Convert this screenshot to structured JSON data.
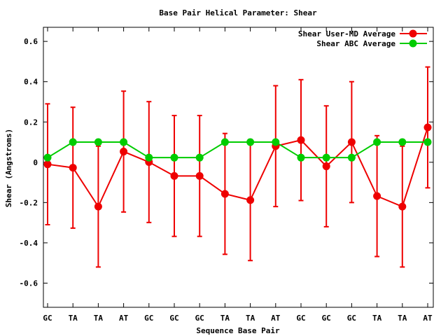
{
  "chart_data": {
    "type": "line",
    "title": "Base Pair Helical Parameter: Shear",
    "xlabel": "Sequence Base Pair",
    "ylabel": "Shear (Angstroms)",
    "categories": [
      "GC",
      "TA",
      "TA",
      "AT",
      "GC",
      "GC",
      "GC",
      "TA",
      "TA",
      "AT",
      "GC",
      "GC",
      "GC",
      "TA",
      "TA",
      "AT"
    ],
    "ylim": [
      -0.72,
      0.67
    ],
    "yticks": [
      -0.6,
      -0.4,
      -0.2,
      0,
      0.2,
      0.4,
      0.6
    ],
    "ytick_labels": [
      "-0.6",
      "-0.4",
      "-0.2",
      "0",
      "0.2",
      "0.4",
      "0.6"
    ],
    "legend_position": "top-right",
    "grid": false,
    "series": [
      {
        "name": "Shear User-MD Average",
        "color": "#ee0000",
        "values": [
          -0.01,
          -0.027,
          -0.22,
          0.053,
          0.001,
          -0.068,
          -0.068,
          -0.157,
          -0.188,
          0.08,
          0.11,
          -0.02,
          0.1,
          -0.168,
          -0.22,
          0.173
        ],
        "error_low": [
          -0.31,
          -0.327,
          -0.52,
          -0.247,
          -0.299,
          -0.368,
          -0.368,
          -0.457,
          -0.488,
          -0.22,
          -0.19,
          -0.32,
          -0.2,
          -0.468,
          -0.52,
          -0.127
        ],
        "error_high": [
          0.29,
          0.273,
          0.08,
          0.353,
          0.301,
          0.232,
          0.232,
          0.143,
          0.112,
          0.38,
          0.41,
          0.28,
          0.4,
          0.132,
          0.08,
          0.473
        ]
      },
      {
        "name": "Shear ABC Average",
        "color": "#00cc00",
        "values": [
          0.023,
          0.1,
          0.1,
          0.1,
          0.023,
          0.023,
          0.023,
          0.1,
          0.1,
          0.1,
          0.023,
          0.023,
          0.023,
          0.1,
          0.1,
          0.1
        ]
      }
    ]
  }
}
